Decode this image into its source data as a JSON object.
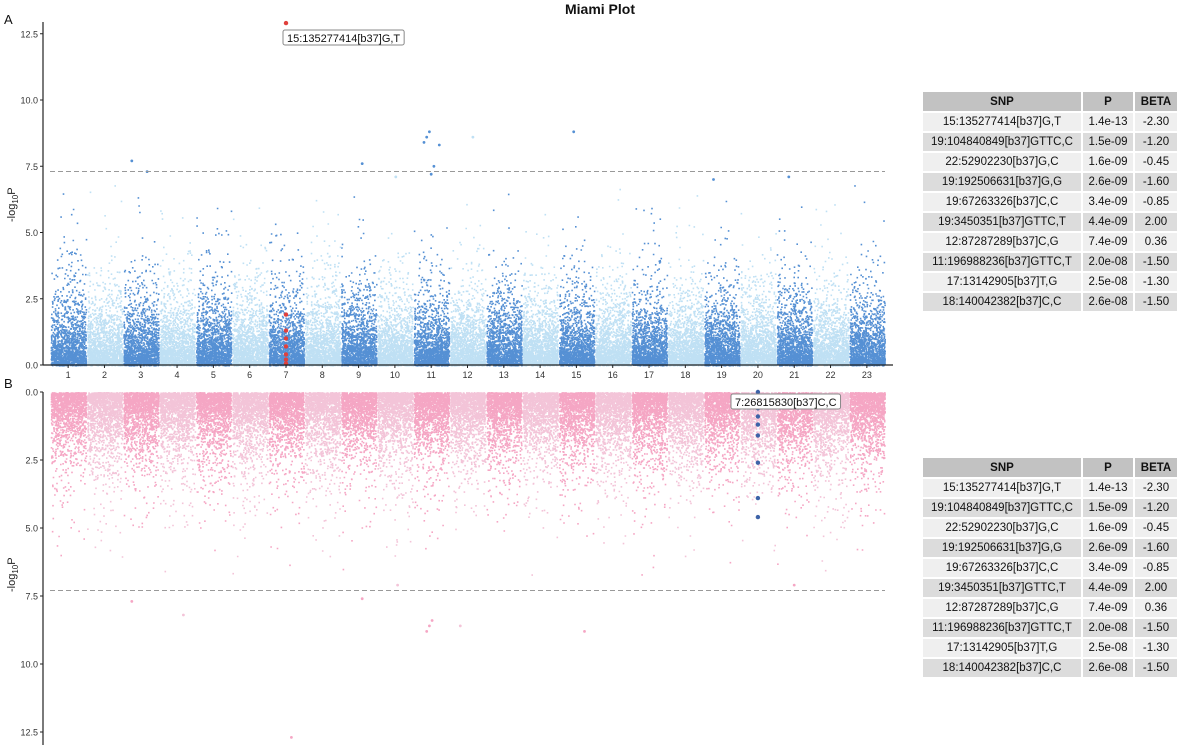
{
  "title": "Miami Plot",
  "panels": [
    {
      "tag": "A",
      "ylabel_base": "-log",
      "ylabel_sub": "10",
      "ylabel_end": "P"
    },
    {
      "tag": "B",
      "ylabel_base": "-log",
      "ylabel_sub": "10",
      "ylabel_end": "P"
    }
  ],
  "table": {
    "headers": [
      "SNP",
      "P",
      "BETA"
    ],
    "rows": [
      [
        "15:135277414[b37]G,T",
        "1.4e-13",
        "-2.30"
      ],
      [
        "19:104840849[b37]GTTC,C",
        "1.5e-09",
        "-1.20"
      ],
      [
        "22:52902230[b37]G,C",
        "1.6e-09",
        "-0.45"
      ],
      [
        "19:192506631[b37]G,G",
        "2.6e-09",
        "-1.60"
      ],
      [
        "19:67263326[b37]C,C",
        "3.4e-09",
        "-0.85"
      ],
      [
        "19:3450351[b37]GTTC,T",
        "4.4e-09",
        "2.00"
      ],
      [
        "12:87287289[b37]C,G",
        "7.4e-09",
        "0.36"
      ],
      [
        "11:196988236[b37]GTTC,T",
        "2.0e-08",
        "-1.50"
      ],
      [
        "17:13142905[b37]T,G",
        "2.5e-08",
        "-1.30"
      ],
      [
        "18:140042382[b37]C,C",
        "2.6e-08",
        "-1.50"
      ]
    ]
  },
  "chart_data": {
    "type": "scatter",
    "subtype": "miami",
    "title": "Miami Plot",
    "xlabel": "",
    "chromosomes": [
      "1",
      "2",
      "3",
      "4",
      "5",
      "6",
      "7",
      "8",
      "9",
      "10",
      "11",
      "12",
      "13",
      "14",
      "15",
      "16",
      "17",
      "18",
      "19",
      "20",
      "21",
      "22",
      "23"
    ],
    "ylim": [
      0,
      13
    ],
    "yticks": [
      0,
      2.5,
      5,
      7.5,
      10,
      12.5
    ],
    "ytick_labels": [
      "0.0",
      "2.5",
      "5.0",
      "7.5",
      "10.0",
      "12.5"
    ],
    "significance_line": 7.3,
    "top": {
      "colors": [
        "#5590d4",
        "#bfe0f4"
      ],
      "highlight_color": "#e0403c",
      "highlight_chrom": 7,
      "highlight_values": [
        12.9,
        1.9,
        1.3,
        1.0,
        0.7,
        0.4,
        0.2,
        0.05
      ],
      "annotation": "15:135277414[b37]G,T",
      "notable_points": [
        {
          "chrom": 3,
          "value": 7.7
        },
        {
          "chrom": 3,
          "value": 7.3
        },
        {
          "chrom": 9,
          "value": 7.6
        },
        {
          "chrom": 10,
          "value": 7.1
        },
        {
          "chrom": 11,
          "value": 8.8
        },
        {
          "chrom": 11,
          "value": 8.6
        },
        {
          "chrom": 11,
          "value": 8.4
        },
        {
          "chrom": 11,
          "value": 8.3
        },
        {
          "chrom": 12,
          "value": 8.6
        },
        {
          "chrom": 11,
          "value": 7.5
        },
        {
          "chrom": 11,
          "value": 7.2
        },
        {
          "chrom": 15,
          "value": 8.8
        },
        {
          "chrom": 21,
          "value": 7.1
        },
        {
          "chrom": 19,
          "value": 7.0
        }
      ]
    },
    "bottom": {
      "colors": [
        "#f5a6c4",
        "#f3c4d8"
      ],
      "highlight_color": "#3d63a8",
      "highlight_chrom": 20,
      "highlight_values": [
        0.0,
        0.6,
        0.9,
        1.2,
        1.6,
        2.6,
        3.9,
        4.6
      ],
      "annotation": "7:26815830[b37]C,C",
      "notable_points": [
        {
          "chrom": 3,
          "value": 7.7
        },
        {
          "chrom": 4,
          "value": 8.2
        },
        {
          "chrom": 9,
          "value": 7.6
        },
        {
          "chrom": 11,
          "value": 8.4
        },
        {
          "chrom": 11,
          "value": 8.6
        },
        {
          "chrom": 11,
          "value": 8.8
        },
        {
          "chrom": 12,
          "value": 8.6
        },
        {
          "chrom": 15,
          "value": 8.8
        },
        {
          "chrom": 7,
          "value": 12.7
        },
        {
          "chrom": 10,
          "value": 7.1
        },
        {
          "chrom": 21,
          "value": 7.1
        }
      ]
    }
  }
}
